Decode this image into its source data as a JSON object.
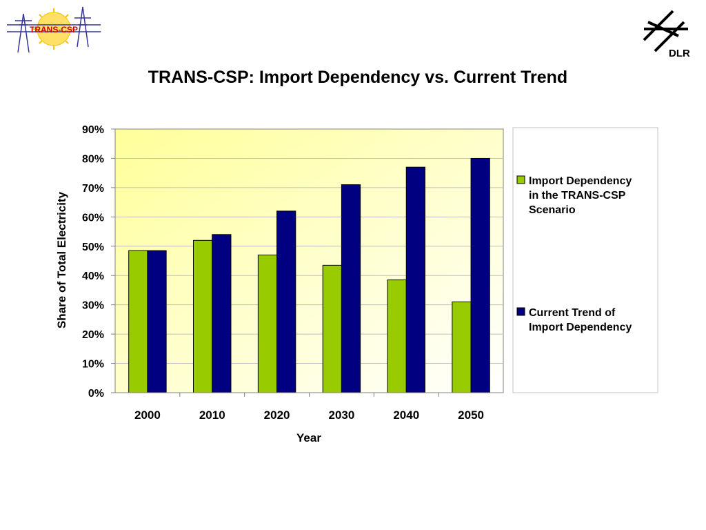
{
  "logos": {
    "left_text": "TRANS-CSP",
    "right_text": "DLR"
  },
  "colors": {
    "series_a": "#99cc00",
    "series_b": "#000080",
    "plot_bg_left": "#ffff99",
    "plot_bg_right": "#ffffff",
    "logo_accent": "#cc0000",
    "logo_sun": "#ffe066"
  },
  "chart_data": {
    "type": "bar",
    "title": "TRANS-CSP: Import Dependency vs. Current Trend",
    "xlabel": "Year",
    "ylabel": "Share of Total Electricity",
    "categories": [
      "2000",
      "2010",
      "2020",
      "2030",
      "2040",
      "2050"
    ],
    "series": [
      {
        "name": "Import Dependency in the TRANS-CSP Scenario",
        "legend_lines": [
          "Import Dependency",
          "in the TRANS-CSP",
          "Scenario"
        ],
        "values": [
          48.5,
          52,
          47,
          43.5,
          38.5,
          31
        ]
      },
      {
        "name": "Current Trend of Import Dependency",
        "legend_lines": [
          "Current Trend of",
          "Import Dependency"
        ],
        "values": [
          48.5,
          54,
          62,
          71,
          77,
          80
        ]
      }
    ],
    "ylim": [
      0,
      90
    ],
    "yticks": [
      0,
      10,
      20,
      30,
      40,
      50,
      60,
      70,
      80,
      90
    ],
    "ytick_labels": [
      "0%",
      "10%",
      "20%",
      "30%",
      "40%",
      "50%",
      "60%",
      "70%",
      "80%",
      "90%"
    ],
    "grid": true,
    "legend_position": "right"
  }
}
